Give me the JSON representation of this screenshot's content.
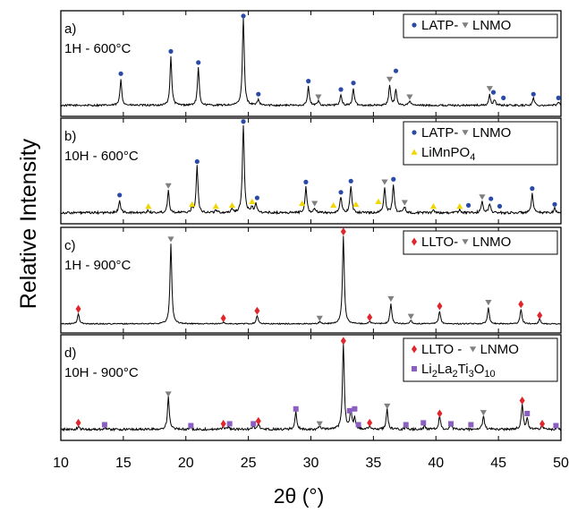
{
  "chart_data": {
    "type": "line",
    "ylabel": "Relative Intensity",
    "xlabel": "2θ (°)",
    "xlim": [
      10,
      50
    ],
    "xticks": [
      10,
      15,
      20,
      25,
      30,
      35,
      40,
      45,
      50
    ],
    "ylim": [
      0,
      1
    ],
    "colors": {
      "line": "#000000",
      "lnmo_marker": "#7f7f7f",
      "latp_marker": "#2a4aa8",
      "limnpo4_marker": "#f2d600",
      "llto_marker": "#e0262b",
      "li2la2ti3o10_marker": "#8a5fc0"
    },
    "panels": [
      {
        "panel_label": "a)",
        "condition": "1H -  600°C",
        "legend": [
          {
            "text": "LATP-",
            "marker": "circle",
            "color": "#2a4aa8"
          },
          {
            "text": "LNMO",
            "marker": "triangle-down",
            "color": "#7f7f7f"
          }
        ],
        "legend_rows": 1,
        "base": 0.08,
        "noise": 0.02,
        "peaks": [
          [
            14.8,
            0.28
          ],
          [
            18.8,
            0.52
          ],
          [
            21.0,
            0.4
          ],
          [
            24.6,
            0.97
          ],
          [
            25.8,
            0.06
          ],
          [
            29.8,
            0.2
          ],
          [
            30.6,
            0.05
          ],
          [
            32.4,
            0.11
          ],
          [
            33.4,
            0.18
          ],
          [
            36.3,
            0.22
          ],
          [
            36.8,
            0.17
          ],
          [
            37.9,
            0.05
          ],
          [
            44.3,
            0.11
          ],
          [
            44.7,
            0.06
          ],
          [
            47.8,
            0.08
          ],
          [
            49.8,
            0.04
          ]
        ],
        "markers": [
          {
            "x": 14.8,
            "h": 0.42,
            "c": "#2a4aa8",
            "s": "circle"
          },
          {
            "x": 18.8,
            "h": 0.66,
            "c": "#2a4aa8",
            "s": "circle"
          },
          {
            "x": 21.0,
            "h": 0.54,
            "c": "#2a4aa8",
            "s": "circle"
          },
          {
            "x": 24.6,
            "h": 1.04,
            "c": "#2a4aa8",
            "s": "circle"
          },
          {
            "x": 25.8,
            "h": 0.2,
            "c": "#2a4aa8",
            "s": "circle"
          },
          {
            "x": 29.8,
            "h": 0.34,
            "c": "#2a4aa8",
            "s": "circle"
          },
          {
            "x": 30.6,
            "h": 0.17,
            "c": "#7f7f7f",
            "s": "triangle-down"
          },
          {
            "x": 32.4,
            "h": 0.25,
            "c": "#2a4aa8",
            "s": "circle"
          },
          {
            "x": 33.4,
            "h": 0.32,
            "c": "#2a4aa8",
            "s": "circle"
          },
          {
            "x": 36.3,
            "h": 0.36,
            "c": "#7f7f7f",
            "s": "triangle-down"
          },
          {
            "x": 36.8,
            "h": 0.45,
            "c": "#2a4aa8",
            "s": "circle"
          },
          {
            "x": 37.9,
            "h": 0.17,
            "c": "#7f7f7f",
            "s": "triangle-down"
          },
          {
            "x": 44.3,
            "h": 0.26,
            "c": "#7f7f7f",
            "s": "triangle-down"
          },
          {
            "x": 44.6,
            "h": 0.22,
            "c": "#2a4aa8",
            "s": "circle"
          },
          {
            "x": 45.4,
            "h": 0.16,
            "c": "#2a4aa8",
            "s": "circle"
          },
          {
            "x": 47.8,
            "h": 0.2,
            "c": "#2a4aa8",
            "s": "circle"
          },
          {
            "x": 49.8,
            "h": 0.16,
            "c": "#2a4aa8",
            "s": "circle"
          }
        ]
      },
      {
        "panel_label": "b)",
        "condition": "10H -  600°C",
        "legend": [
          {
            "text": "LATP-",
            "marker": "circle",
            "color": "#2a4aa8"
          },
          {
            "text": "LNMO",
            "marker": "triangle-down",
            "color": "#7f7f7f"
          },
          {
            "text": "LiMnPO4",
            "marker": "triangle-up",
            "color": "#f2d600",
            "sub": "4",
            "main": "LiMnPO"
          }
        ],
        "legend_rows": 2,
        "base": 0.08,
        "noise": 0.025,
        "peaks": [
          [
            14.7,
            0.14
          ],
          [
            17.0,
            0.03
          ],
          [
            18.6,
            0.24
          ],
          [
            20.5,
            0.05
          ],
          [
            20.9,
            0.5
          ],
          [
            22.4,
            0.03
          ],
          [
            23.7,
            0.04
          ],
          [
            24.6,
            0.97
          ],
          [
            25.3,
            0.06
          ],
          [
            25.6,
            0.09
          ],
          [
            29.6,
            0.28
          ],
          [
            30.3,
            0.05
          ],
          [
            32.4,
            0.17
          ],
          [
            33.2,
            0.29
          ],
          [
            35.9,
            0.28
          ],
          [
            36.6,
            0.3
          ],
          [
            37.5,
            0.06
          ],
          [
            39.8,
            0.03
          ],
          [
            41.9,
            0.04
          ],
          [
            43.7,
            0.12
          ],
          [
            44.3,
            0.1
          ],
          [
            47.7,
            0.2
          ],
          [
            49.5,
            0.05
          ]
        ],
        "markers": [
          {
            "x": 14.7,
            "h": 0.27,
            "c": "#2a4aa8",
            "s": "circle"
          },
          {
            "x": 17.0,
            "h": 0.15,
            "c": "#f2d600",
            "s": "triangle-up"
          },
          {
            "x": 18.6,
            "h": 0.37,
            "c": "#7f7f7f",
            "s": "triangle-down"
          },
          {
            "x": 20.5,
            "h": 0.17,
            "c": "#f2d600",
            "s": "triangle-up"
          },
          {
            "x": 20.9,
            "h": 0.63,
            "c": "#2a4aa8",
            "s": "circle"
          },
          {
            "x": 22.4,
            "h": 0.15,
            "c": "#f2d600",
            "s": "triangle-up"
          },
          {
            "x": 23.7,
            "h": 0.16,
            "c": "#f2d600",
            "s": "triangle-up"
          },
          {
            "x": 24.6,
            "h": 1.06,
            "c": "#2a4aa8",
            "s": "circle"
          },
          {
            "x": 25.3,
            "h": 0.2,
            "c": "#f2d600",
            "s": "triangle-up"
          },
          {
            "x": 25.7,
            "h": 0.24,
            "c": "#2a4aa8",
            "s": "circle"
          },
          {
            "x": 29.3,
            "h": 0.18,
            "c": "#f2d600",
            "s": "triangle-up"
          },
          {
            "x": 29.6,
            "h": 0.41,
            "c": "#2a4aa8",
            "s": "circle"
          },
          {
            "x": 30.3,
            "h": 0.18,
            "c": "#7f7f7f",
            "s": "triangle-down"
          },
          {
            "x": 31.8,
            "h": 0.16,
            "c": "#f2d600",
            "s": "triangle-up"
          },
          {
            "x": 32.4,
            "h": 0.3,
            "c": "#2a4aa8",
            "s": "circle"
          },
          {
            "x": 33.2,
            "h": 0.42,
            "c": "#2a4aa8",
            "s": "circle"
          },
          {
            "x": 33.6,
            "h": 0.17,
            "c": "#f2d600",
            "s": "triangle-up"
          },
          {
            "x": 35.4,
            "h": 0.2,
            "c": "#f2d600",
            "s": "triangle-up"
          },
          {
            "x": 35.9,
            "h": 0.41,
            "c": "#7f7f7f",
            "s": "triangle-down"
          },
          {
            "x": 36.6,
            "h": 0.44,
            "c": "#2a4aa8",
            "s": "circle"
          },
          {
            "x": 37.5,
            "h": 0.19,
            "c": "#7f7f7f",
            "s": "triangle-down"
          },
          {
            "x": 39.8,
            "h": 0.15,
            "c": "#f2d600",
            "s": "triangle-up"
          },
          {
            "x": 41.9,
            "h": 0.15,
            "c": "#f2d600",
            "s": "triangle-up"
          },
          {
            "x": 42.6,
            "h": 0.16,
            "c": "#2a4aa8",
            "s": "circle"
          },
          {
            "x": 43.7,
            "h": 0.25,
            "c": "#7f7f7f",
            "s": "triangle-down"
          },
          {
            "x": 44.4,
            "h": 0.23,
            "c": "#2a4aa8",
            "s": "circle"
          },
          {
            "x": 45.1,
            "h": 0.15,
            "c": "#2a4aa8",
            "s": "circle"
          },
          {
            "x": 47.7,
            "h": 0.34,
            "c": "#2a4aa8",
            "s": "circle"
          },
          {
            "x": 49.5,
            "h": 0.17,
            "c": "#2a4aa8",
            "s": "circle"
          }
        ]
      },
      {
        "panel_label": "c)",
        "condition": "1H - 900°C",
        "legend": [
          {
            "text": "LLTO-",
            "marker": "diamond",
            "color": "#e0262b"
          },
          {
            "text": "LNMO",
            "marker": "triangle-down",
            "color": "#7f7f7f"
          }
        ],
        "legend_rows": 1,
        "base": 0.06,
        "noise": 0.012,
        "peaks": [
          [
            11.4,
            0.11
          ],
          [
            18.8,
            0.86
          ],
          [
            23.0,
            0.02
          ],
          [
            25.7,
            0.09
          ],
          [
            30.7,
            0.02
          ],
          [
            32.6,
            0.95
          ],
          [
            34.7,
            0.03
          ],
          [
            36.4,
            0.22
          ],
          [
            38.0,
            0.04
          ],
          [
            40.3,
            0.14
          ],
          [
            44.2,
            0.18
          ],
          [
            46.8,
            0.16
          ],
          [
            48.3,
            0.05
          ]
        ],
        "markers": [
          {
            "x": 11.4,
            "h": 0.22,
            "c": "#e0262b",
            "s": "diamond"
          },
          {
            "x": 18.8,
            "h": 0.97,
            "c": "#7f7f7f",
            "s": "triangle-down"
          },
          {
            "x": 23.0,
            "h": 0.12,
            "c": "#e0262b",
            "s": "diamond"
          },
          {
            "x": 25.7,
            "h": 0.2,
            "c": "#e0262b",
            "s": "diamond"
          },
          {
            "x": 30.7,
            "h": 0.12,
            "c": "#7f7f7f",
            "s": "triangle-down"
          },
          {
            "x": 32.6,
            "h": 1.05,
            "c": "#e0262b",
            "s": "diamond"
          },
          {
            "x": 34.7,
            "h": 0.13,
            "c": "#e0262b",
            "s": "diamond"
          },
          {
            "x": 36.4,
            "h": 0.33,
            "c": "#7f7f7f",
            "s": "triangle-down"
          },
          {
            "x": 38.0,
            "h": 0.14,
            "c": "#7f7f7f",
            "s": "triangle-down"
          },
          {
            "x": 40.3,
            "h": 0.25,
            "c": "#e0262b",
            "s": "diamond"
          },
          {
            "x": 44.2,
            "h": 0.29,
            "c": "#7f7f7f",
            "s": "triangle-down"
          },
          {
            "x": 46.8,
            "h": 0.27,
            "c": "#e0262b",
            "s": "diamond"
          },
          {
            "x": 48.3,
            "h": 0.15,
            "c": "#e0262b",
            "s": "diamond"
          }
        ]
      },
      {
        "panel_label": "d)",
        "condition": "10H - 900°C",
        "legend": [
          {
            "text": "LLTO -",
            "marker": "diamond",
            "color": "#e0262b"
          },
          {
            "text": "LNMO",
            "marker": "triangle-down",
            "color": "#7f7f7f"
          },
          {
            "text": "Li2La2Ti3O10",
            "marker": "square",
            "color": "#8a5fc0"
          }
        ],
        "legend_rows": 2,
        "base": 0.08,
        "noise": 0.025,
        "peaks": [
          [
            11.4,
            0.03
          ],
          [
            13.5,
            0.02
          ],
          [
            18.6,
            0.35
          ],
          [
            20.4,
            0.02
          ],
          [
            23.0,
            0.03
          ],
          [
            23.4,
            0.03
          ],
          [
            25.4,
            0.04
          ],
          [
            25.8,
            0.06
          ],
          [
            28.8,
            0.19
          ],
          [
            30.7,
            0.03
          ],
          [
            32.6,
            0.93
          ],
          [
            33.2,
            0.2
          ],
          [
            33.5,
            0.12
          ],
          [
            34.7,
            0.04
          ],
          [
            36.1,
            0.22
          ],
          [
            37.6,
            0.03
          ],
          [
            39.1,
            0.04
          ],
          [
            40.3,
            0.14
          ],
          [
            41.2,
            0.04
          ],
          [
            43.8,
            0.15
          ],
          [
            46.9,
            0.28
          ],
          [
            47.3,
            0.12
          ],
          [
            48.5,
            0.04
          ],
          [
            49.7,
            0.03
          ]
        ],
        "markers": [
          {
            "x": 11.4,
            "h": 0.15,
            "c": "#e0262b",
            "s": "diamond"
          },
          {
            "x": 13.5,
            "h": 0.13,
            "c": "#8a5fc0",
            "s": "square"
          },
          {
            "x": 18.6,
            "h": 0.46,
            "c": "#7f7f7f",
            "s": "triangle-down"
          },
          {
            "x": 20.4,
            "h": 0.12,
            "c": "#8a5fc0",
            "s": "square"
          },
          {
            "x": 23.0,
            "h": 0.14,
            "c": "#e0262b",
            "s": "diamond"
          },
          {
            "x": 23.5,
            "h": 0.14,
            "c": "#8a5fc0",
            "s": "square"
          },
          {
            "x": 25.4,
            "h": 0.14,
            "c": "#8a5fc0",
            "s": "square"
          },
          {
            "x": 25.8,
            "h": 0.17,
            "c": "#e0262b",
            "s": "diamond"
          },
          {
            "x": 28.8,
            "h": 0.3,
            "c": "#8a5fc0",
            "s": "square"
          },
          {
            "x": 30.7,
            "h": 0.14,
            "c": "#7f7f7f",
            "s": "triangle-down"
          },
          {
            "x": 32.6,
            "h": 1.03,
            "c": "#e0262b",
            "s": "diamond"
          },
          {
            "x": 33.1,
            "h": 0.28,
            "c": "#8a5fc0",
            "s": "square"
          },
          {
            "x": 33.5,
            "h": 0.3,
            "c": "#8a5fc0",
            "s": "square"
          },
          {
            "x": 33.8,
            "h": 0.13,
            "c": "#8a5fc0",
            "s": "square"
          },
          {
            "x": 34.7,
            "h": 0.15,
            "c": "#e0262b",
            "s": "diamond"
          },
          {
            "x": 36.1,
            "h": 0.33,
            "c": "#7f7f7f",
            "s": "triangle-down"
          },
          {
            "x": 37.6,
            "h": 0.13,
            "c": "#8a5fc0",
            "s": "square"
          },
          {
            "x": 39.0,
            "h": 0.15,
            "c": "#8a5fc0",
            "s": "square"
          },
          {
            "x": 40.3,
            "h": 0.25,
            "c": "#e0262b",
            "s": "diamond"
          },
          {
            "x": 41.2,
            "h": 0.14,
            "c": "#8a5fc0",
            "s": "square"
          },
          {
            "x": 42.8,
            "h": 0.13,
            "c": "#8a5fc0",
            "s": "square"
          },
          {
            "x": 43.8,
            "h": 0.26,
            "c": "#7f7f7f",
            "s": "triangle-down"
          },
          {
            "x": 46.9,
            "h": 0.39,
            "c": "#e0262b",
            "s": "diamond"
          },
          {
            "x": 47.3,
            "h": 0.25,
            "c": "#8a5fc0",
            "s": "square"
          },
          {
            "x": 48.5,
            "h": 0.14,
            "c": "#e0262b",
            "s": "diamond"
          },
          {
            "x": 49.6,
            "h": 0.12,
            "c": "#8a5fc0",
            "s": "square"
          }
        ]
      }
    ]
  }
}
